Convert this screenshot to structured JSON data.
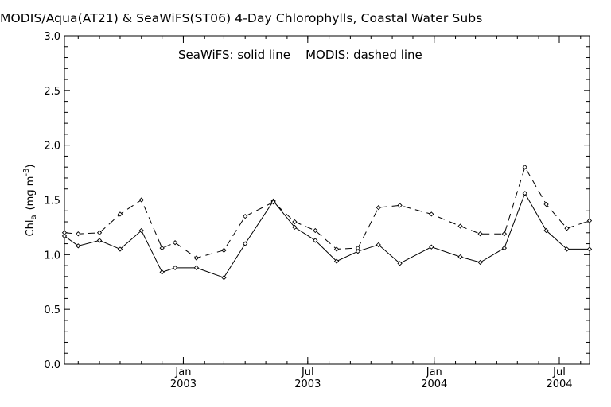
{
  "chart_data": {
    "type": "line",
    "title": "MODIS/Aqua(AT21) & SeaWiFS(ST06) 4-Day Chlorophylls, Coastal Water Subs",
    "annotation": "SeaWiFS: solid line    MODIS: dashed line",
    "ylabel": "Chl",
    "ylabel_subscript": "a",
    "ylabel_units_prefix": "(mg m",
    "ylabel_units_superscript": "-3",
    "ylabel_units_suffix": ")",
    "ylim": [
      0.0,
      3.0
    ],
    "yticks": [
      "0.0",
      "0.5",
      "1.0",
      "1.5",
      "2.0",
      "2.5",
      "3.0"
    ],
    "xlim": [
      "2002-07-12",
      "2004-08-14"
    ],
    "xticks": [
      {
        "date": "2003-01-01",
        "label": "Jan",
        "year": "2003"
      },
      {
        "date": "2003-07-01",
        "label": "Jul",
        "year": "2003"
      },
      {
        "date": "2004-01-01",
        "label": "Jan",
        "year": "2004"
      },
      {
        "date": "2004-07-01",
        "label": "Jul",
        "year": "2004"
      }
    ],
    "minor_ticks": [
      "2002-08-01",
      "2002-09-01",
      "2002-10-01",
      "2002-11-01",
      "2002-12-01",
      "2003-01-01",
      "2003-02-01",
      "2003-03-01",
      "2003-04-01",
      "2003-05-01",
      "2003-06-01",
      "2003-07-01",
      "2003-08-01",
      "2003-09-01",
      "2003-10-01",
      "2003-11-01",
      "2003-12-01",
      "2004-01-01",
      "2004-02-01",
      "2004-03-01",
      "2004-04-01",
      "2004-05-01",
      "2004-06-01",
      "2004-07-01",
      "2004-08-01"
    ],
    "series": [
      {
        "style": "solid",
        "points": [
          [
            "2002-07-12",
            1.17
          ],
          [
            "2002-08-01",
            1.08
          ],
          [
            "2002-09-01",
            1.13
          ],
          [
            "2002-10-01",
            1.05
          ],
          [
            "2002-11-01",
            1.22
          ],
          [
            "2002-12-01",
            0.84
          ],
          [
            "2002-12-20",
            0.88
          ],
          [
            "2003-01-20",
            0.88
          ],
          [
            "2003-03-01",
            0.79
          ],
          [
            "2003-04-01",
            1.1
          ],
          [
            "2003-05-12",
            1.49
          ],
          [
            "2003-06-12",
            1.25
          ],
          [
            "2003-07-12",
            1.13
          ],
          [
            "2003-08-12",
            0.94
          ],
          [
            "2003-09-12",
            1.03
          ],
          [
            "2003-10-12",
            1.09
          ],
          [
            "2003-11-12",
            0.92
          ],
          [
            "2003-12-28",
            1.07
          ],
          [
            "2004-02-08",
            0.98
          ],
          [
            "2004-03-08",
            0.93
          ],
          [
            "2004-04-12",
            1.06
          ],
          [
            "2004-05-12",
            1.56
          ],
          [
            "2004-06-12",
            1.22
          ],
          [
            "2004-07-12",
            1.05
          ],
          [
            "2004-08-14",
            1.05
          ]
        ]
      },
      {
        "style": "dashed",
        "points": [
          [
            "2002-07-12",
            1.2
          ],
          [
            "2002-08-01",
            1.19
          ],
          [
            "2002-09-01",
            1.2
          ],
          [
            "2002-10-01",
            1.37
          ],
          [
            "2002-11-01",
            1.5
          ],
          [
            "2002-12-01",
            1.06
          ],
          [
            "2002-12-20",
            1.11
          ],
          [
            "2003-01-20",
            0.97
          ],
          [
            "2003-03-01",
            1.04
          ],
          [
            "2003-04-01",
            1.35
          ],
          [
            "2003-05-12",
            1.48
          ],
          [
            "2003-06-12",
            1.3
          ],
          [
            "2003-07-12",
            1.22
          ],
          [
            "2003-08-12",
            1.05
          ],
          [
            "2003-09-12",
            1.06
          ],
          [
            "2003-10-12",
            1.43
          ],
          [
            "2003-11-12",
            1.45
          ],
          [
            "2003-12-28",
            1.37
          ],
          [
            "2004-02-08",
            1.26
          ],
          [
            "2004-03-08",
            1.19
          ],
          [
            "2004-04-12",
            1.19
          ],
          [
            "2004-05-12",
            1.8
          ],
          [
            "2004-06-12",
            1.46
          ],
          [
            "2004-07-12",
            1.24
          ],
          [
            "2004-08-14",
            1.31
          ]
        ]
      }
    ]
  }
}
